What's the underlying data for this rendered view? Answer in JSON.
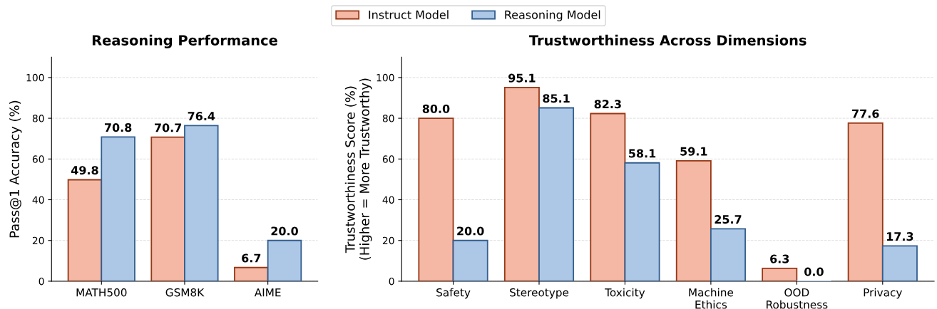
{
  "chart_data": [
    {
      "type": "bar",
      "title": "Reasoning Performance",
      "ylabel": "Pass@1 Accuracy (%)",
      "categories": [
        "MATH500",
        "GSM8K",
        "AIME"
      ],
      "series": [
        {
          "name": "Instruct Model",
          "color": "#f4b8a4",
          "values": [
            49.8,
            70.7,
            6.7
          ],
          "value_labels": [
            "49.8",
            "70.7",
            "6.7"
          ]
        },
        {
          "name": "Reasoning Model",
          "color": "#adc8e6",
          "values": [
            70.8,
            76.4,
            20
          ],
          "value_labels": [
            "70.8",
            "76.4",
            "20.0"
          ]
        }
      ],
      "ylim": [
        0,
        110
      ],
      "yticks": [
        0,
        20,
        40,
        60,
        80,
        100
      ],
      "grid": "y",
      "legend": "top"
    },
    {
      "type": "bar",
      "title": "Trustworthiness Across Dimensions",
      "ylabel": "Trustworthiness Score (%)\n(Higher = More Trustworthy)",
      "categories": [
        "Safety",
        "Stereotype",
        "Toxicity",
        "Machine\nEthics",
        "OOD\nRobustness",
        "Privacy"
      ],
      "series": [
        {
          "color": "#f4b8a4",
          "values": [
            80,
            95.1,
            82.3,
            59.1,
            6.3,
            77.6
          ],
          "value_labels": [
            "80.0",
            "95.1",
            "82.3",
            "59.1",
            "6.3",
            "77.6"
          ]
        },
        {
          "color": "#adc8e6",
          "values": [
            20,
            85.1,
            58.1,
            25.7,
            0,
            17.3
          ],
          "value_labels": [
            "20.0",
            "85.1",
            "58.1",
            "25.7",
            "0.0",
            "17.3"
          ]
        }
      ],
      "ylim": [
        0,
        110
      ],
      "yticks": [
        0,
        20,
        40,
        60,
        80,
        100
      ],
      "grid": "y"
    }
  ]
}
